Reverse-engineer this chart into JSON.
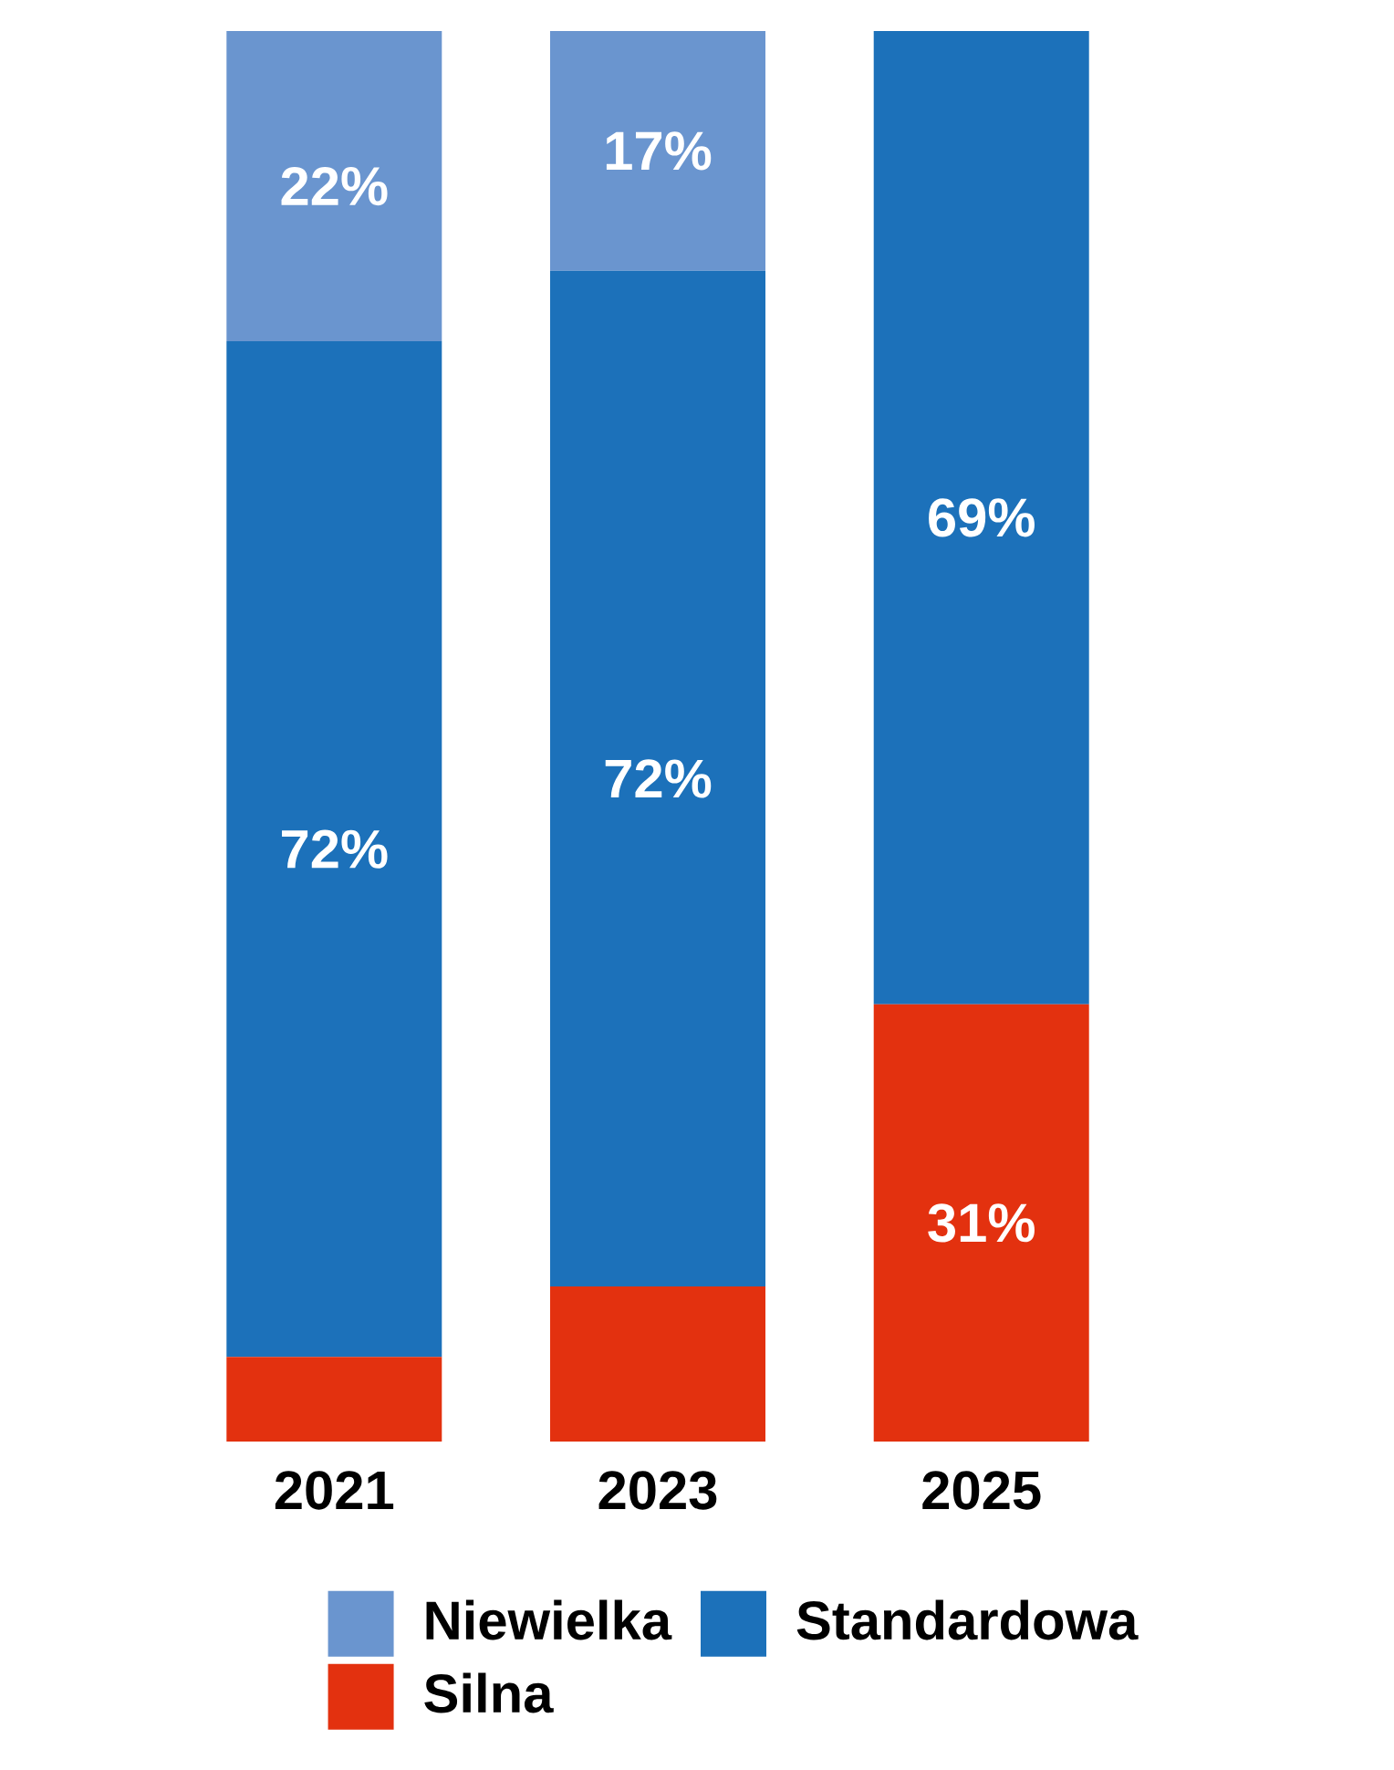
{
  "chart_data": {
    "type": "bar",
    "stacked": true,
    "categories": [
      "2021",
      "2023",
      "2025"
    ],
    "series": [
      {
        "name": "Silna",
        "color": "#e3310f",
        "values": [
          6,
          11,
          31
        ],
        "value_labels": [
          null,
          null,
          "31%"
        ]
      },
      {
        "name": "Standardowa",
        "color": "#1c71ba",
        "values": [
          72,
          72,
          69
        ],
        "value_labels": [
          "72%",
          "72%",
          "69%"
        ]
      },
      {
        "name": "Niewielka",
        "color": "#6a95cf",
        "values": [
          22,
          17,
          null
        ],
        "value_labels": [
          "22%",
          "17%",
          null
        ]
      }
    ],
    "legend": "bottom"
  }
}
